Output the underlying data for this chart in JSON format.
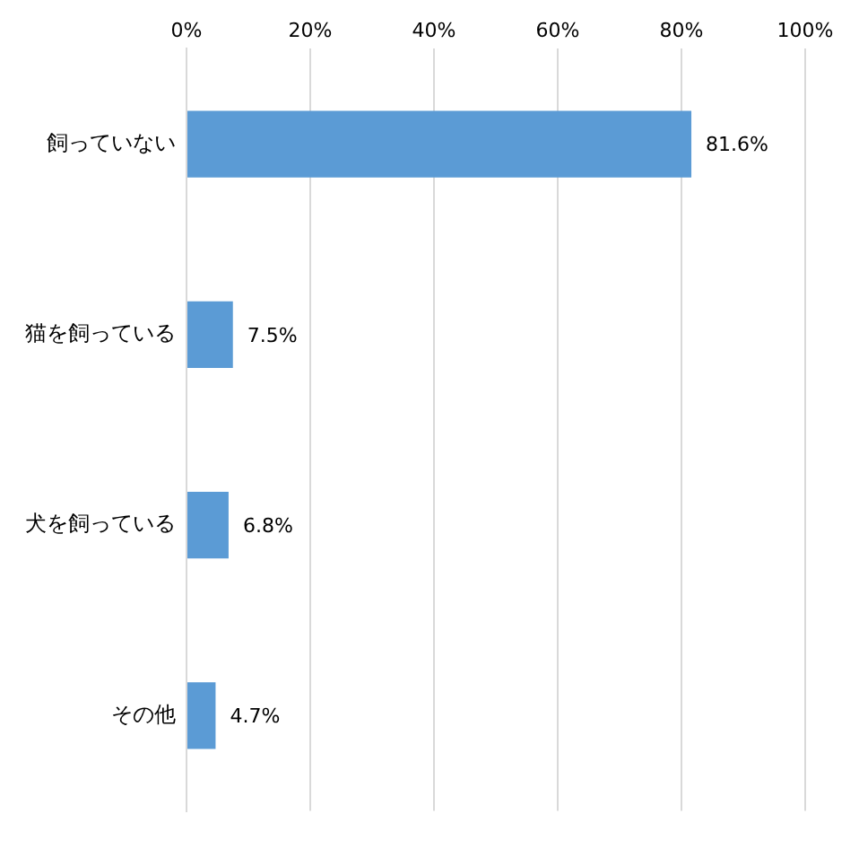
{
  "chart_data": {
    "type": "bar",
    "orientation": "horizontal",
    "categories": [
      "飼っていない",
      "猫を飼っている",
      "犬を飼っている",
      "その他"
    ],
    "values": [
      81.6,
      7.5,
      6.8,
      4.7
    ],
    "color": "#5b9bd5",
    "value_labels": [
      "81.6%",
      "7.5%",
      "6.8%",
      "4.7%"
    ],
    "xlim": [
      0,
      100
    ],
    "xticks": [
      {
        "value": 0,
        "label": "0%"
      },
      {
        "value": 20,
        "label": "20%"
      },
      {
        "value": 40,
        "label": "40%"
      },
      {
        "value": 60,
        "label": "60%"
      },
      {
        "value": 80,
        "label": "80%"
      },
      {
        "value": 100,
        "label": "100%"
      }
    ],
    "grid": "x",
    "legend": false
  }
}
